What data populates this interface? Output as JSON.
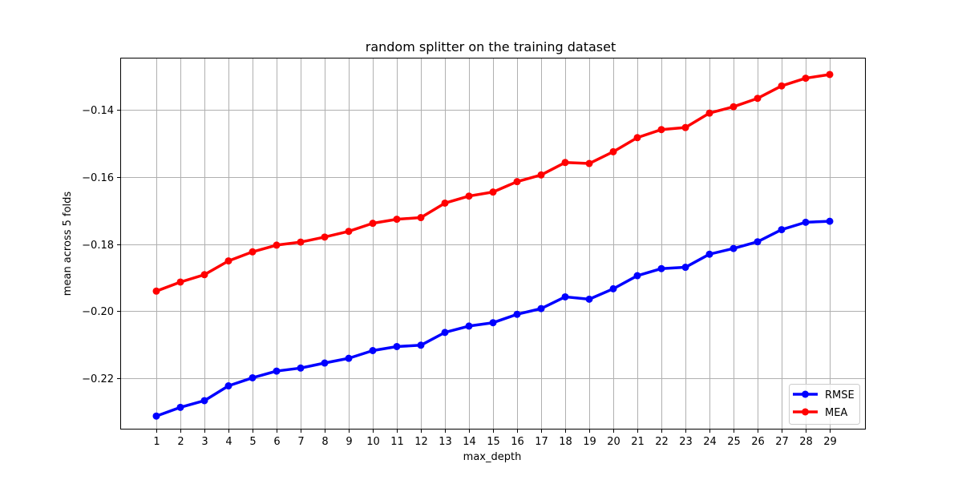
{
  "chart_data": {
    "type": "line",
    "title": "random splitter on the training dataset",
    "xlabel": "max_depth",
    "ylabel": "mean  across 5 folds",
    "x": [
      1,
      2,
      3,
      4,
      5,
      6,
      7,
      8,
      9,
      10,
      11,
      12,
      13,
      14,
      15,
      16,
      17,
      18,
      19,
      20,
      21,
      22,
      23,
      24,
      25,
      26,
      27,
      28,
      29
    ],
    "xlim": [
      -0.5,
      30.5
    ],
    "ylim": [
      -0.2352,
      -0.1245
    ],
    "y_ticks": [
      -0.22,
      -0.2,
      -0.18,
      -0.16,
      -0.14
    ],
    "y_tick_labels": [
      "−0.22",
      "−0.20",
      "−0.18",
      "−0.16",
      "−0.14"
    ],
    "x_tick_labels": [
      "1",
      "2",
      "3",
      "4",
      "5",
      "6",
      "7",
      "8",
      "9",
      "10",
      "11",
      "12",
      "13",
      "14",
      "15",
      "16",
      "17",
      "18",
      "19",
      "20",
      "21",
      "22",
      "23",
      "24",
      "25",
      "26",
      "27",
      "28",
      "29"
    ],
    "grid": true,
    "legend_position": "lower-right",
    "series": [
      {
        "name": "RMSE",
        "color": "#0000ff",
        "values": [
          -0.2312,
          -0.2286,
          -0.2266,
          -0.2222,
          -0.2198,
          -0.2178,
          -0.2169,
          -0.2154,
          -0.214,
          -0.2117,
          -0.2105,
          -0.2101,
          -0.2063,
          -0.2044,
          -0.2034,
          -0.2009,
          -0.1992,
          -0.1957,
          -0.1964,
          -0.1933,
          -0.1894,
          -0.1873,
          -0.1869,
          -0.183,
          -0.1813,
          -0.1793,
          -0.1757,
          -0.1735,
          -0.1732
        ]
      },
      {
        "name": "MEA",
        "color": "#ff0000",
        "values": [
          -0.194,
          -0.1913,
          -0.1891,
          -0.185,
          -0.1823,
          -0.1803,
          -0.1794,
          -0.1779,
          -0.1762,
          -0.1738,
          -0.1726,
          -0.1721,
          -0.1678,
          -0.1657,
          -0.1645,
          -0.1614,
          -0.1594,
          -0.1557,
          -0.156,
          -0.1525,
          -0.1483,
          -0.1459,
          -0.1453,
          -0.141,
          -0.1391,
          -0.1366,
          -0.1329,
          -0.1306,
          -0.1295
        ]
      }
    ]
  }
}
